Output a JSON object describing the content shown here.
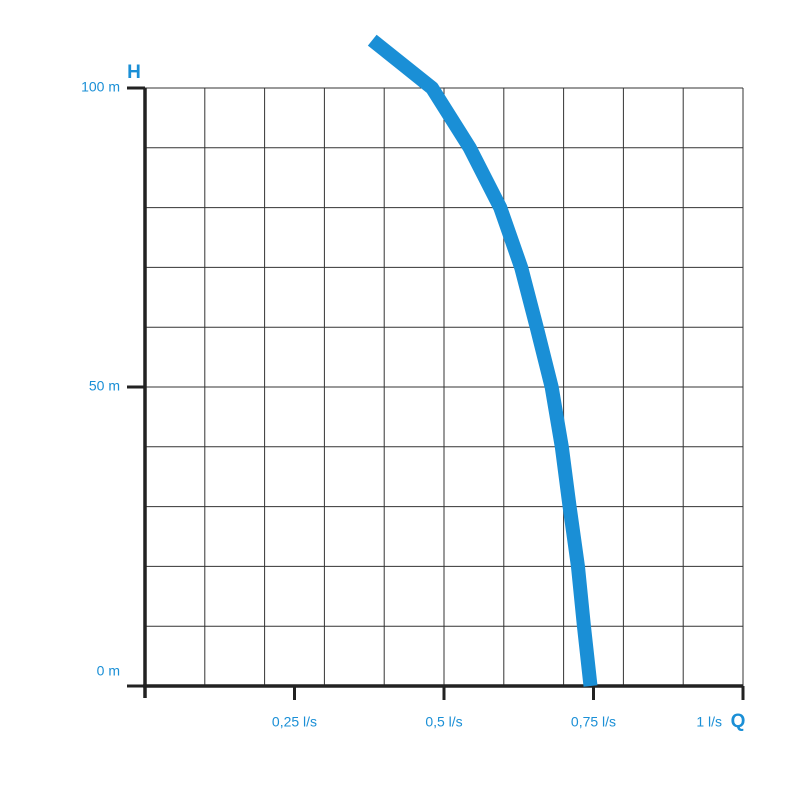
{
  "chart_data": {
    "type": "line",
    "ylabel": "H",
    "xlabel": "Q",
    "xlim": [
      0,
      1
    ],
    "ylim": [
      0,
      100
    ],
    "xticks": [
      {
        "value": 0.25,
        "label": "0,25 l/s"
      },
      {
        "value": 0.5,
        "label": "0,5 l/s"
      },
      {
        "value": 0.75,
        "label": "0,75 l/s"
      },
      {
        "value": 1,
        "label": "1 l/s"
      }
    ],
    "yticks": [
      {
        "value": 0,
        "label": "0 m"
      },
      {
        "value": 50,
        "label": "50 m"
      },
      {
        "value": 100,
        "label": "100 m"
      }
    ],
    "xgrid": [
      0.1,
      0.2,
      0.3,
      0.4,
      0.5,
      0.6,
      0.7,
      0.8,
      0.9,
      1
    ],
    "ygrid": [
      10,
      20,
      30,
      40,
      50,
      60,
      70,
      80,
      90,
      100
    ],
    "grid": true,
    "series": [
      {
        "color": "#1a8fd6",
        "x": [
          0.38,
          0.43,
          0.48,
          0.543,
          0.594,
          0.629,
          0.655,
          0.68,
          0.697,
          0.71,
          0.724,
          0.734,
          0.745
        ],
        "values": [
          108,
          104,
          100,
          90,
          80,
          70,
          60,
          50,
          40,
          30,
          20,
          10,
          0
        ]
      }
    ]
  }
}
